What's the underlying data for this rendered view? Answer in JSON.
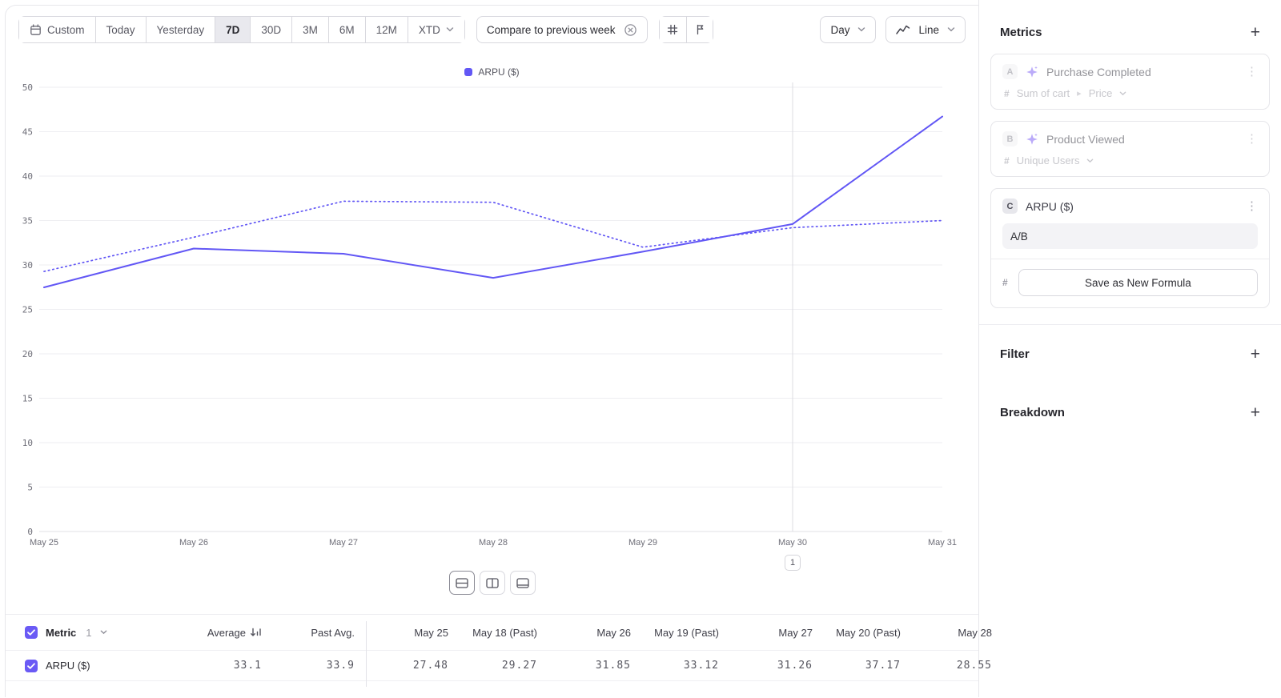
{
  "accent_color": "#6a5af5",
  "toolbar": {
    "ranges": [
      {
        "label": "Custom"
      },
      {
        "label": "Today"
      },
      {
        "label": "Yesterday"
      },
      {
        "label": "7D"
      },
      {
        "label": "30D"
      },
      {
        "label": "3M"
      },
      {
        "label": "6M"
      },
      {
        "label": "12M"
      },
      {
        "label": "XTD"
      }
    ],
    "active_range": "7D",
    "compare_label": "Compare to previous week",
    "granularity_label": "Day",
    "chart_type_label": "Line"
  },
  "chart_data": {
    "type": "line",
    "x": [
      "May 25",
      "May 26",
      "May 27",
      "May 28",
      "May 29",
      "May 30",
      "May 31"
    ],
    "series": [
      {
        "name": "ARPU ($)",
        "style": "solid",
        "values": [
          27.48,
          31.85,
          31.26,
          28.55,
          31.5,
          34.6,
          46.7
        ]
      },
      {
        "name": "ARPU ($) previous week",
        "style": "dotted",
        "values": [
          29.27,
          33.12,
          37.17,
          37.05,
          32.0,
          34.2,
          35.0
        ]
      }
    ],
    "ylim": [
      0,
      50
    ],
    "ytick_step": 5,
    "grid": "horizontal",
    "legend_position": "top-center",
    "legend": [
      {
        "label": "ARPU ($)",
        "color": "#6257f5"
      }
    ],
    "annotation_marker": {
      "x_label": "May 30",
      "label": "1"
    }
  },
  "table": {
    "metric_header": "Metric",
    "metric_count": "1",
    "headers": [
      "Average",
      "Past Avg.",
      "May 25",
      "May 18 (Past)",
      "May 26",
      "May 19 (Past)",
      "May 27",
      "May 20 (Past)",
      "May 28"
    ],
    "rows": [
      {
        "label": "ARPU ($)",
        "values": [
          "33.1",
          "33.9",
          "27.48",
          "29.27",
          "31.85",
          "33.12",
          "31.26",
          "37.17",
          "28.55"
        ]
      }
    ]
  },
  "sidebar": {
    "metrics_title": "Metrics",
    "cards": [
      {
        "badge": "A",
        "title": "Purchase Completed",
        "measure": "Sum of cart",
        "measure_property": "Price"
      },
      {
        "badge": "B",
        "title": "Product Viewed",
        "measure": "Unique Users"
      },
      {
        "badge": "C",
        "title": "ARPU ($)",
        "formula": "A/B",
        "save_button_label": "Save as New Formula"
      }
    ],
    "filter_title": "Filter",
    "breakdown_title": "Breakdown"
  }
}
